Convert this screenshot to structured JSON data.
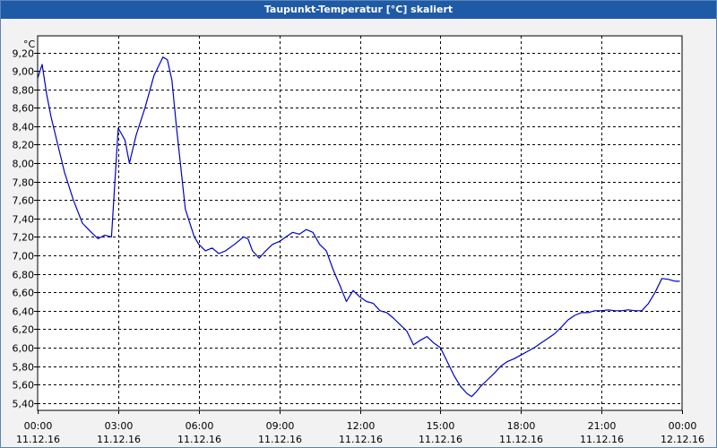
{
  "window": {
    "title": "Taupunkt-Temperatur [°C] skaliert"
  },
  "colors": {
    "line": "#0000c8",
    "grid": "#000000",
    "plot_bg": "#ffffff",
    "window_bg": "#f2f2f2",
    "title_bg": "#1f5aa6"
  },
  "chart_data": {
    "type": "line",
    "title": "Taupunkt-Temperatur [°C] skaliert",
    "ylabel": "°C",
    "xlabel": "",
    "ylim": [
      5.32,
      9.38
    ],
    "xlim": [
      "11.12.16 00:00",
      "12.12.16 00:00"
    ],
    "grid": true,
    "x_ticks": [
      {
        "time": "00:00",
        "date": "11.12.16"
      },
      {
        "time": "03:00",
        "date": "11.12.16"
      },
      {
        "time": "06:00",
        "date": "11.12.16"
      },
      {
        "time": "09:00",
        "date": "11.12.16"
      },
      {
        "time": "12:00",
        "date": "11.12.16"
      },
      {
        "time": "15:00",
        "date": "11.12.16"
      },
      {
        "time": "18:00",
        "date": "11.12.16"
      },
      {
        "time": "21:00",
        "date": "11.12.16"
      },
      {
        "time": "00:00",
        "date": "12.12.16"
      }
    ],
    "y_ticks": [
      "5,40",
      "5,60",
      "5,80",
      "6,00",
      "6,20",
      "6,40",
      "6,60",
      "6,80",
      "7,00",
      "7,20",
      "7,40",
      "7,60",
      "7,80",
      "8,00",
      "8,20",
      "8,40",
      "8,60",
      "8,80",
      "9,00",
      "9,20"
    ],
    "series": [
      {
        "x": [
          "00:00",
          "00:10",
          "00:20",
          "00:30",
          "00:45",
          "01:00",
          "01:20",
          "01:40",
          "02:00",
          "02:15",
          "02:30",
          "02:45",
          "03:00",
          "03:15",
          "03:25",
          "03:40",
          "04:00",
          "04:20",
          "04:40",
          "04:50",
          "05:00",
          "05:10",
          "05:30",
          "05:50",
          "06:00",
          "06:15",
          "06:30",
          "06:45",
          "07:00",
          "07:20",
          "07:40",
          "07:50",
          "08:00",
          "08:15",
          "08:30",
          "08:45",
          "09:00",
          "09:15",
          "09:30",
          "09:45",
          "10:00",
          "10:15",
          "10:30",
          "10:45",
          "11:00",
          "11:15",
          "11:30",
          "11:45",
          "12:00",
          "12:15",
          "12:30",
          "12:45",
          "13:00",
          "13:15",
          "13:30",
          "13:45",
          "14:00",
          "14:15",
          "14:30",
          "14:45",
          "15:00",
          "15:15",
          "15:30",
          "15:45",
          "16:00",
          "16:10",
          "16:20",
          "16:30",
          "16:45",
          "17:00",
          "17:15",
          "17:30",
          "17:45",
          "18:00",
          "18:15",
          "18:30",
          "18:45",
          "19:00",
          "19:15",
          "19:30",
          "19:45",
          "20:00",
          "20:15",
          "20:30",
          "20:45",
          "21:00",
          "21:15",
          "21:30",
          "21:45",
          "22:00",
          "22:15",
          "22:30",
          "22:45",
          "23:00",
          "23:15",
          "23:30",
          "23:45",
          "23:55"
        ],
        "y": [
          8.92,
          9.07,
          8.75,
          8.5,
          8.2,
          7.9,
          7.6,
          7.35,
          7.25,
          7.18,
          7.22,
          7.2,
          8.38,
          8.25,
          8.0,
          8.3,
          8.6,
          8.95,
          9.15,
          9.12,
          8.9,
          8.4,
          7.5,
          7.2,
          7.12,
          7.05,
          7.08,
          7.02,
          7.05,
          7.12,
          7.2,
          7.18,
          7.05,
          6.97,
          7.05,
          7.12,
          7.15,
          7.2,
          7.25,
          7.23,
          7.28,
          7.25,
          7.12,
          7.05,
          6.85,
          6.68,
          6.5,
          6.62,
          6.55,
          6.5,
          6.48,
          6.4,
          6.38,
          6.32,
          6.25,
          6.18,
          6.03,
          6.08,
          6.12,
          6.05,
          6.0,
          5.85,
          5.7,
          5.58,
          5.5,
          5.47,
          5.52,
          5.58,
          5.65,
          5.72,
          5.8,
          5.85,
          5.88,
          5.92,
          5.96,
          6.0,
          6.05,
          6.1,
          6.15,
          6.22,
          6.3,
          6.35,
          6.38,
          6.38,
          6.4,
          6.4,
          6.41,
          6.4,
          6.4,
          6.41,
          6.4,
          6.4,
          6.48,
          6.6,
          6.75,
          6.74,
          6.72,
          6.72
        ]
      }
    ]
  }
}
